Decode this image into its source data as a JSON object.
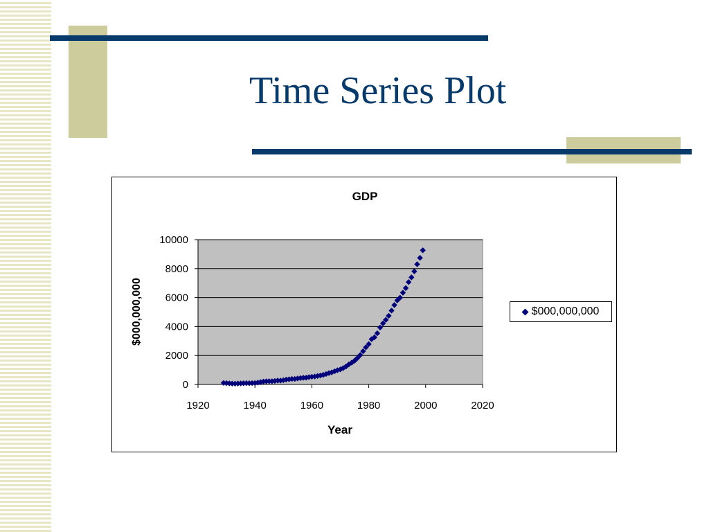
{
  "slide": {
    "title": "Time Series Plot"
  },
  "colors": {
    "title": "#063a6b",
    "accent_bar": "#063a6b",
    "accent_block": "#cccc9c",
    "plot_area": "#c0c0c0",
    "marker": "#00007a"
  },
  "chart_data": {
    "type": "scatter",
    "title": "GDP",
    "xlabel": "Year",
    "ylabel": "$000,000,000",
    "xlim": [
      1920,
      2020
    ],
    "ylim": [
      0,
      10000
    ],
    "xticks": [
      1920,
      1940,
      1960,
      1980,
      2000,
      2020
    ],
    "yticks": [
      0,
      2000,
      4000,
      6000,
      8000,
      10000
    ],
    "grid": true,
    "legend_position": "right",
    "marker_shape": "diamond",
    "series": [
      {
        "name": "$000,000,000",
        "x": [
          1929,
          1930,
          1931,
          1932,
          1933,
          1934,
          1935,
          1936,
          1937,
          1938,
          1939,
          1940,
          1941,
          1942,
          1943,
          1944,
          1945,
          1946,
          1947,
          1948,
          1949,
          1950,
          1951,
          1952,
          1953,
          1954,
          1955,
          1956,
          1957,
          1958,
          1959,
          1960,
          1961,
          1962,
          1963,
          1964,
          1965,
          1966,
          1967,
          1968,
          1969,
          1970,
          1971,
          1972,
          1973,
          1974,
          1975,
          1976,
          1977,
          1978,
          1979,
          1980,
          1981,
          1982,
          1983,
          1984,
          1985,
          1986,
          1987,
          1988,
          1989,
          1990,
          1991,
          1992,
          1993,
          1994,
          1995,
          1996,
          1997,
          1998,
          1999
        ],
        "y": [
          103,
          91,
          77,
          59,
          56,
          66,
          73,
          84,
          92,
          86,
          92,
          101,
          126,
          162,
          199,
          220,
          223,
          222,
          244,
          269,
          267,
          294,
          339,
          358,
          379,
          380,
          415,
          438,
          461,
          467,
          507,
          527,
          545,
          586,
          618,
          664,
          719,
          788,
          833,
          910,
          985,
          1040,
          1128,
          1241,
          1385,
          1501,
          1635,
          1824,
          2031,
          2295,
          2563,
          2789,
          3128,
          3255,
          3537,
          3933,
          4220,
          4463,
          4740,
          5104,
          5484,
          5803,
          5996,
          6338,
          6657,
          7072,
          7398,
          7817,
          8304,
          8747,
          9268
        ]
      }
    ]
  }
}
